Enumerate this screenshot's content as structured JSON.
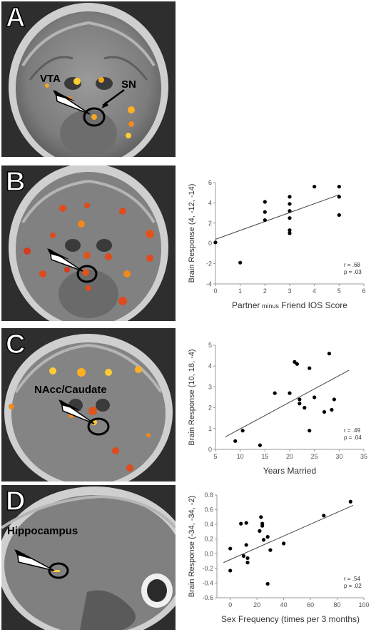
{
  "panels": [
    {
      "letter": "A",
      "labels": [
        "VTA",
        "SN"
      ]
    },
    {
      "letter": "B",
      "labels": []
    },
    {
      "letter": "C",
      "labels": [
        "NAcc/Caudate"
      ]
    },
    {
      "letter": "D",
      "labels": [
        "Hippocampus"
      ]
    }
  ],
  "chart_data": [
    {
      "type": "scatter",
      "panel": "B",
      "ylabel": "Brain Response (4, -12, -14)",
      "xlabel_parts": [
        "Partner",
        "minus",
        "Friend IOS Score"
      ],
      "xlim": [
        0,
        6
      ],
      "ylim": [
        -4,
        6
      ],
      "xticks": [
        0,
        1,
        2,
        3,
        4,
        5,
        6
      ],
      "yticks": [
        -4,
        -2,
        0,
        2,
        4,
        6
      ],
      "x": [
        0,
        1,
        2,
        2,
        2,
        3,
        3,
        3,
        3,
        3,
        3,
        4,
        5,
        5,
        5
      ],
      "y": [
        0.1,
        -1.9,
        4.1,
        3.1,
        2.3,
        4.6,
        3.9,
        3.2,
        2.5,
        1.3,
        1.0,
        5.6,
        5.6,
        4.6,
        2.8
      ],
      "fit": [
        [
          0,
          0.4
        ],
        [
          5,
          4.8
        ]
      ],
      "stats": [
        "r = .68",
        "p = .03"
      ]
    },
    {
      "type": "scatter",
      "panel": "C",
      "ylabel": "Brain Response (10, 18, -4)",
      "xlabel": "Years Married",
      "xlim": [
        5,
        35
      ],
      "ylim": [
        0,
        5
      ],
      "xticks": [
        5,
        10,
        15,
        20,
        25,
        30,
        35
      ],
      "yticks": [
        0,
        1,
        2,
        3,
        4,
        5
      ],
      "x": [
        9,
        10.5,
        14,
        17,
        20,
        21,
        21.5,
        22,
        22,
        23,
        24,
        24,
        25,
        27,
        28,
        28.5,
        29
      ],
      "y": [
        0.4,
        0.9,
        0.2,
        2.7,
        2.7,
        4.2,
        4.1,
        2.4,
        2.2,
        2.0,
        3.9,
        0.9,
        2.5,
        1.8,
        4.6,
        1.9,
        2.4
      ],
      "fit": [
        [
          7,
          0.6
        ],
        [
          32,
          3.8
        ]
      ],
      "stats": [
        "r = .49",
        "p = .04"
      ]
    },
    {
      "type": "scatter",
      "panel": "D",
      "ylabel": "Brain Response (-34, -34, -2)",
      "xlabel": "Sex Frequency (times per 3 months)",
      "xlim": [
        -10,
        100
      ],
      "ylim": [
        -0.6,
        0.8
      ],
      "xticks": [
        0,
        20,
        40,
        60,
        80,
        100
      ],
      "yticks": [
        -0.6,
        -0.4,
        -0.2,
        0.0,
        0.2,
        0.4,
        0.6,
        0.8
      ],
      "ytick_labels": [
        "-0.6",
        "-0.4",
        "-0.2",
        "0.0",
        "0.2",
        "0.4",
        "0.6",
        "0.8"
      ],
      "x": [
        0,
        0,
        8,
        10,
        12,
        12,
        13,
        13,
        22,
        23,
        24,
        24,
        25,
        28,
        28,
        30,
        40,
        70,
        90
      ],
      "y": [
        0.07,
        -0.23,
        0.41,
        -0.03,
        0.42,
        0.12,
        -0.12,
        -0.06,
        0.31,
        0.5,
        0.41,
        0.38,
        0.19,
        0.23,
        -0.41,
        0.05,
        0.14,
        0.52,
        0.71
      ],
      "fit": [
        [
          -5,
          -0.12
        ],
        [
          92,
          0.66
        ]
      ],
      "stats": [
        "r = .54",
        "p = .02"
      ]
    }
  ]
}
